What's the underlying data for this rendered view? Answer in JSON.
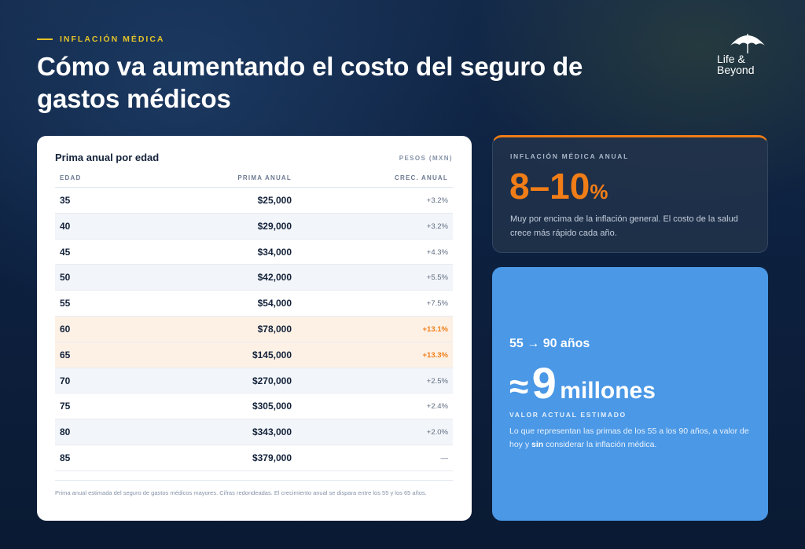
{
  "header": {
    "eyebrow": "INFLACIÓN MÉDICA",
    "title": "Cómo va aumentando el costo del seguro de gastos médicos"
  },
  "logo": {
    "line1": "Life &",
    "line2": "Beyond",
    "icon": "umbrella-icon"
  },
  "table_card": {
    "title": "Prima anual por edad",
    "unit": "PESOS (MXN)",
    "columns": [
      "EDAD",
      "PRIMA ANUAL",
      "CREC. ANUAL"
    ],
    "rows": [
      {
        "age": "35",
        "premium": "$25,000",
        "growth": "+3.2%"
      },
      {
        "age": "40",
        "premium": "$29,000",
        "growth": "+3.2%"
      },
      {
        "age": "45",
        "premium": "$34,000",
        "growth": "+4.3%"
      },
      {
        "age": "50",
        "premium": "$42,000",
        "growth": "+5.5%"
      },
      {
        "age": "55",
        "premium": "$54,000",
        "growth": "+7.5%"
      },
      {
        "age": "60",
        "premium": "$78,000",
        "growth": "+13.1%"
      },
      {
        "age": "65",
        "premium": "$145,000",
        "growth": "+13.3%"
      },
      {
        "age": "70",
        "premium": "$270,000",
        "growth": "+2.5%"
      },
      {
        "age": "75",
        "premium": "$305,000",
        "growth": "+2.4%"
      },
      {
        "age": "80",
        "premium": "$343,000",
        "growth": "+2.0%"
      },
      {
        "age": "85",
        "premium": "$379,000",
        "growth": "—"
      }
    ],
    "footnote": "Prima anual estimada del seguro de gastos médicos mayores. Cifras redondeadas. El crecimiento anual se dispara entre los 55 y los 65 años."
  },
  "inflation_card": {
    "label": "INFLACIÓN MÉDICA ANUAL",
    "value": "8–10",
    "value_unit": "%",
    "description": "Muy por encima de la inflación general. El costo de la salud crece más rápido cada año."
  },
  "total_card": {
    "range": "55 → 90 años",
    "approx": "≈",
    "amount": "9",
    "amount_unit": "millones",
    "label": "VALOR ACTUAL ESTIMADO",
    "desc_before": "Lo que representan las primas de los 55 a los 90 años, a valor de hoy y ",
    "desc_bold": "sin",
    "desc_after": " considerar la inflación médica."
  },
  "colors": {
    "accent_orange": "#f07d17",
    "eyebrow_yellow": "#e3c229",
    "card_blue": "#4a98e6",
    "background_navy": "#0d2140"
  }
}
